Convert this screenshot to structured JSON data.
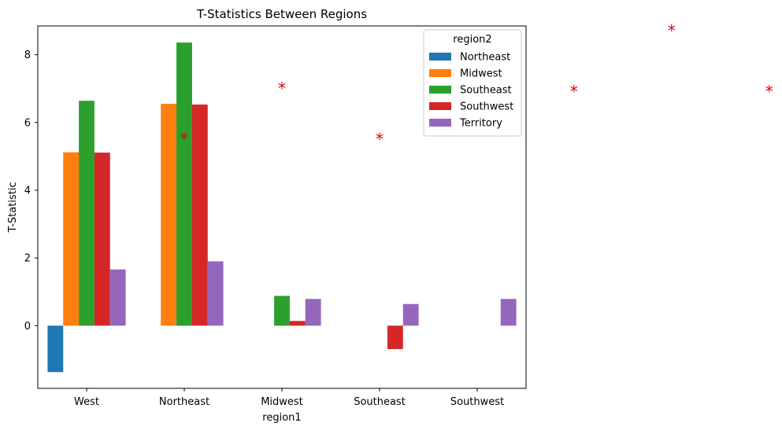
{
  "chart_data": {
    "type": "bar",
    "title": "T-Statistics Between Regions",
    "xlabel": "region1",
    "ylabel": "T-Statistic",
    "categories": [
      "West",
      "Northeast",
      "Midwest",
      "Southeast",
      "Southwest"
    ],
    "ylim": [
      -1.85,
      8.85
    ],
    "yticks": [
      0,
      2,
      4,
      6,
      8
    ],
    "legend": {
      "title": "region2",
      "placement": "top-right"
    },
    "series": [
      {
        "name": "Northeast",
        "color": "#1f77b4",
        "values": [
          -1.37,
          null,
          null,
          null,
          null
        ]
      },
      {
        "name": "Midwest",
        "color": "#ff7f0e",
        "values": [
          5.12,
          6.55,
          null,
          null,
          null
        ]
      },
      {
        "name": "Southeast",
        "color": "#2ca02c",
        "values": [
          6.64,
          8.36,
          0.88,
          null,
          null
        ]
      },
      {
        "name": "Southwest",
        "color": "#d62728",
        "values": [
          5.11,
          6.53,
          0.14,
          -0.69,
          null
        ]
      },
      {
        "name": "Territory",
        "color": "#9467bd",
        "values": [
          1.66,
          1.9,
          0.79,
          0.64,
          0.79
        ]
      }
    ],
    "annotations": [
      {
        "text": "*",
        "x": 1.0,
        "y": 5.6
      },
      {
        "text": "*",
        "x": 2.0,
        "y": 7.1
      },
      {
        "text": "*",
        "x": 3.0,
        "y": 5.6
      },
      {
        "text": "*",
        "x": 4.99,
        "y": 7.0
      },
      {
        "text": "*",
        "x": 5.99,
        "y": 8.8
      },
      {
        "text": "*",
        "x": 6.99,
        "y": 7.0
      }
    ]
  }
}
